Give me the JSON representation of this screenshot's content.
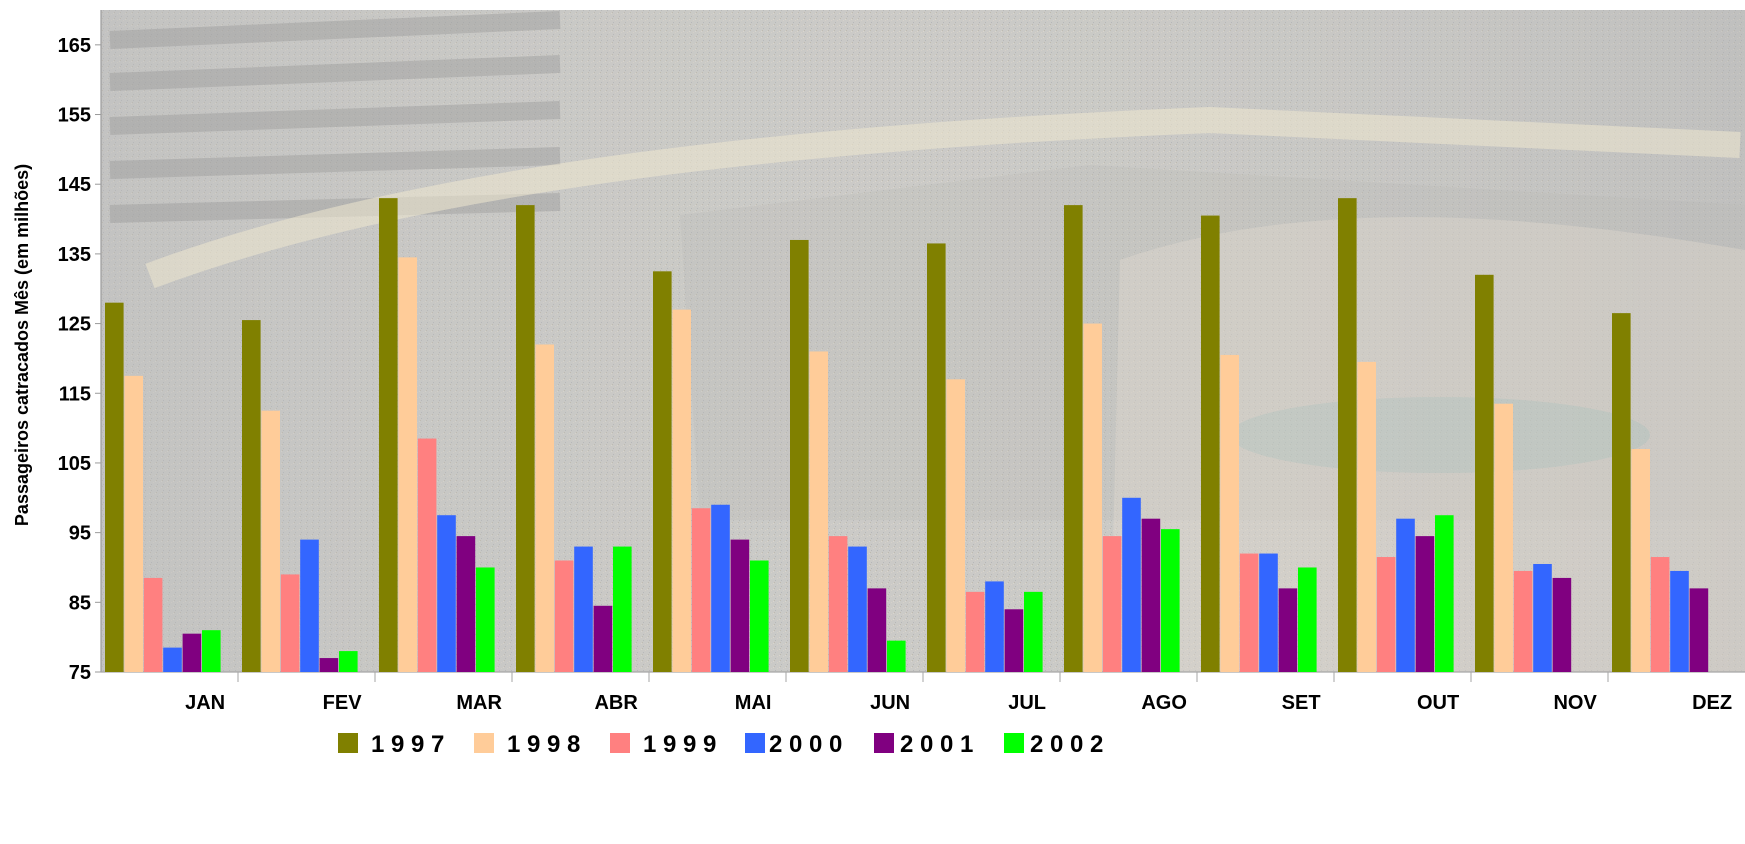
{
  "chart_data": {
    "type": "bar",
    "title": "",
    "xlabel": "",
    "ylabel": "Passageiros catracados Mês (em milhões)",
    "ylim": [
      75,
      170
    ],
    "yticks": [
      75,
      85,
      95,
      105,
      115,
      125,
      135,
      145,
      155,
      165
    ],
    "categories": [
      "JAN",
      "FEV",
      "MAR",
      "ABR",
      "MAI",
      "JUN",
      "JUL",
      "AGO",
      "SET",
      "OUT",
      "NOV",
      "DEZ"
    ],
    "legend_position": "bottom",
    "grid": false,
    "series": [
      {
        "name": "1997",
        "color": "#808000",
        "values": [
          128,
          125.5,
          143,
          142,
          132.5,
          137,
          136.5,
          142,
          140.5,
          143,
          132,
          126.5
        ]
      },
      {
        "name": "1998",
        "color": "#FFCC99",
        "values": [
          117.5,
          112.5,
          134.5,
          122,
          127,
          121,
          117,
          125,
          120.5,
          119.5,
          113.5,
          107
        ]
      },
      {
        "name": "1999",
        "color": "#FF8080",
        "values": [
          88.5,
          89,
          108.5,
          91,
          98.5,
          94.5,
          86.5,
          94.5,
          92,
          91.5,
          89.5,
          91.5
        ]
      },
      {
        "name": "2000",
        "color": "#3366FF",
        "values": [
          78.5,
          94,
          97.5,
          93,
          99,
          93,
          88,
          100,
          92,
          97,
          90.5,
          89.5
        ]
      },
      {
        "name": "2001",
        "color": "#800080",
        "values": [
          80.5,
          77,
          94.5,
          84.5,
          94,
          87,
          84,
          97,
          87,
          94.5,
          88.5,
          87
        ]
      },
      {
        "name": "2002",
        "color": "#00FF00",
        "values": [
          81,
          78,
          90,
          93,
          91,
          79.5,
          86.5,
          95.5,
          90,
          97.5,
          null,
          null
        ]
      }
    ],
    "legend_labels": [
      "1 9 9 7",
      "1 9 9 8",
      "1 9 9 9",
      "2 0 0 0",
      "2 0 0 1",
      "2 0 0 2"
    ]
  }
}
